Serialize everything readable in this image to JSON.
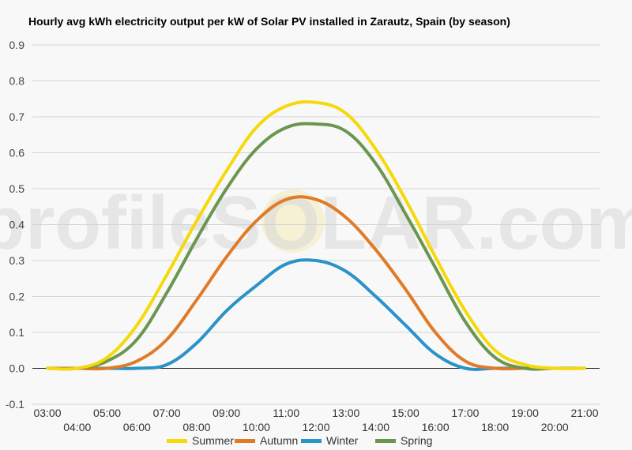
{
  "chart_data": {
    "type": "line",
    "title": "Hourly avg kWh electricity output per kW of Solar PV installed in Zarautz, Spain (by season)",
    "xlabel": "",
    "ylabel": "",
    "ylim": [
      -0.1,
      0.9
    ],
    "y_ticks": [
      "-0.1",
      "0.0",
      "0.1",
      "0.2",
      "0.3",
      "0.4",
      "0.5",
      "0.6",
      "0.7",
      "0.8",
      "0.9"
    ],
    "categories": [
      "03:00",
      "04:00",
      "05:00",
      "06:00",
      "07:00",
      "08:00",
      "09:00",
      "10:00",
      "11:00",
      "12:00",
      "13:00",
      "14:00",
      "15:00",
      "16:00",
      "17:00",
      "18:00",
      "19:00",
      "20:00",
      "21:00"
    ],
    "grid": true,
    "legend_position": "bottom",
    "series": [
      {
        "name": "Summer",
        "color": "#f5d90a",
        "values": [
          0.0,
          0.0,
          0.03,
          0.12,
          0.26,
          0.41,
          0.55,
          0.67,
          0.73,
          0.74,
          0.71,
          0.61,
          0.47,
          0.31,
          0.16,
          0.05,
          0.01,
          0.0,
          0.0
        ]
      },
      {
        "name": "Autumn",
        "color": "#e07b28",
        "values": [
          0.0,
          0.0,
          0.0,
          0.02,
          0.08,
          0.19,
          0.31,
          0.41,
          0.47,
          0.47,
          0.42,
          0.33,
          0.22,
          0.1,
          0.02,
          0.0,
          0.0,
          0.0,
          0.0
        ]
      },
      {
        "name": "Winter",
        "color": "#2a93c8",
        "values": [
          0.0,
          0.0,
          0.0,
          0.0,
          0.01,
          0.07,
          0.16,
          0.23,
          0.29,
          0.3,
          0.27,
          0.2,
          0.12,
          0.04,
          0.0,
          0.0,
          0.0,
          0.0,
          0.0
        ]
      },
      {
        "name": "Spring",
        "color": "#6a9650",
        "values": [
          0.0,
          0.0,
          0.02,
          0.08,
          0.21,
          0.36,
          0.5,
          0.61,
          0.67,
          0.68,
          0.66,
          0.57,
          0.43,
          0.28,
          0.13,
          0.03,
          0.0,
          0.0,
          0.0
        ]
      }
    ]
  },
  "watermark": "profileSOLAR.com"
}
